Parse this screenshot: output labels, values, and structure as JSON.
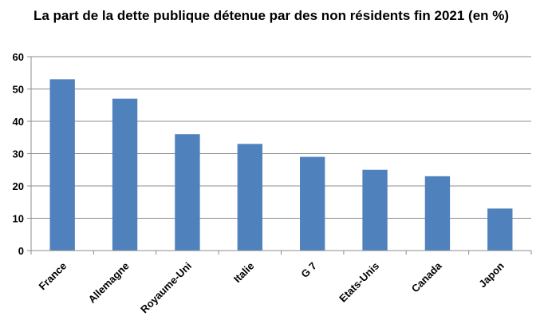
{
  "chart_data": {
    "type": "bar",
    "title": "La part de la dette publique détenue par des non résidents fin 2021 (en %)",
    "xlabel": "",
    "ylabel": "",
    "categories": [
      "France",
      "Allemagne",
      "Royaume-Uni",
      "Italie",
      "G 7",
      "Etats-Unis",
      "Canada",
      "Japon"
    ],
    "values": [
      53,
      47,
      36,
      33,
      29,
      25,
      23,
      13
    ],
    "ylim": [
      0,
      60
    ],
    "yticks": [
      0,
      10,
      20,
      30,
      40,
      50,
      60
    ],
    "grid": true,
    "bar_color": "#4f81bd"
  }
}
